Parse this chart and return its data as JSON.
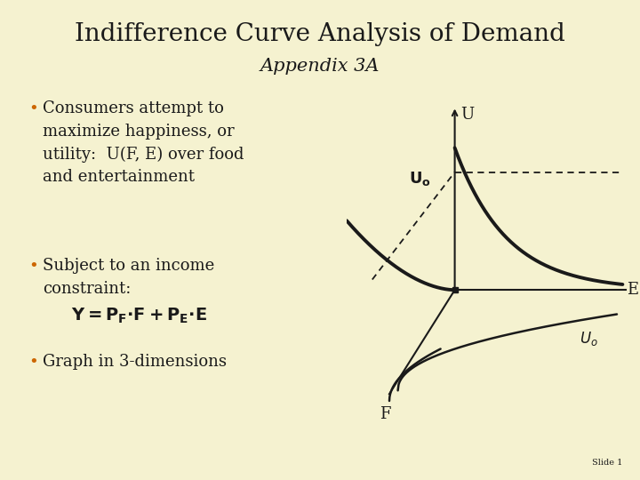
{
  "bg_color": "#f5f2d0",
  "title": "Indifference Curve Analysis of Demand",
  "subtitle": "Appendix 3A",
  "title_color": "#1a1a1a",
  "orange_color": "#cc6600",
  "bullet1": "Consumers attempt to\nmaximize happiness, or\nutility:  U(F, E) over food\nand entertainment",
  "bullet2": "Subject to an income\nconstraint:",
  "bullet3": "Graph in 3-dimensions",
  "slide_label": "Slide 1",
  "axis_color": "#1a1a1a",
  "curve_color": "#1a1a1a"
}
